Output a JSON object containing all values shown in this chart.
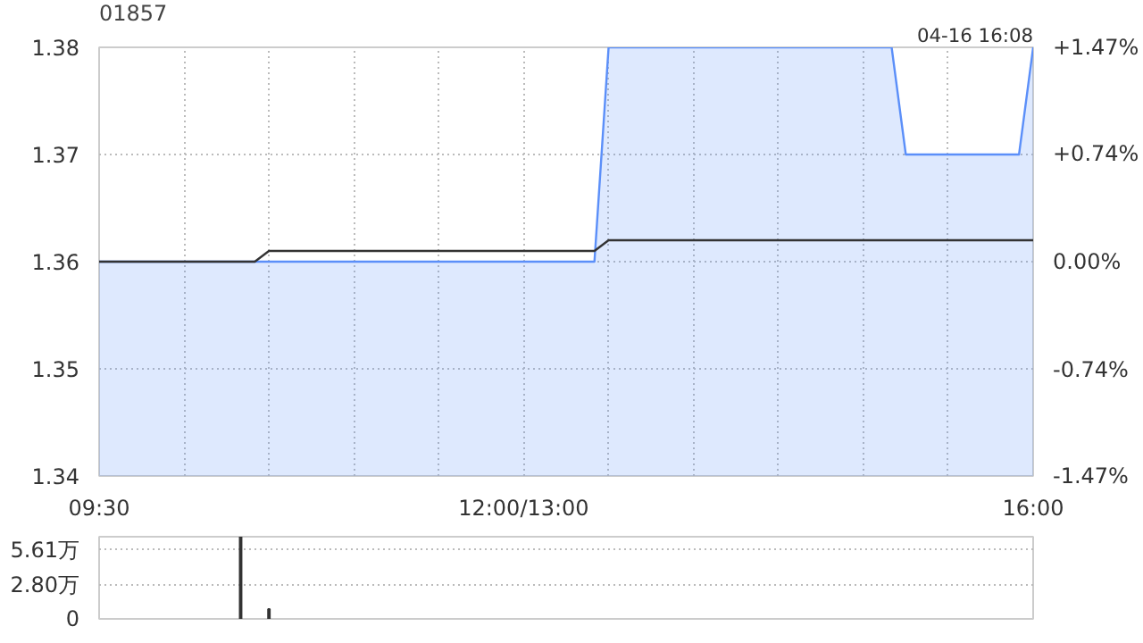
{
  "chart_data": [
    {
      "type": "area",
      "title": "01857",
      "annotations": [
        "04-16 16:08"
      ],
      "categories": [
        "09:30",
        null,
        null,
        null,
        null,
        null,
        null,
        null,
        null,
        null,
        null,
        null,
        null,
        null,
        null,
        null,
        null,
        null,
        null,
        null,
        null,
        null,
        null,
        null,
        null,
        null,
        null,
        null,
        null,
        null,
        "12:00/13:00",
        null,
        null,
        null,
        null,
        null,
        null,
        null,
        null,
        null,
        null,
        null,
        null,
        null,
        null,
        null,
        null,
        null,
        null,
        null,
        null,
        null,
        null,
        null,
        null,
        null,
        null,
        null,
        null,
        null,
        null,
        null,
        null,
        null,
        null,
        null,
        "16:00"
      ],
      "ylim": [
        1.34,
        1.38
      ],
      "yticks": [
        1.34,
        1.35,
        1.36,
        1.37,
        1.38
      ],
      "y2lim": [
        -1.47,
        1.47
      ],
      "y2ticks": [
        {
          "value": -1.47,
          "label": "-1.47%"
        },
        {
          "value": -0.74,
          "label": "-0.74%"
        },
        {
          "value": 0,
          "label": "0.00%"
        },
        {
          "value": 0.74,
          "label": "+0.74%"
        },
        {
          "value": 1.47,
          "label": "+1.47%"
        }
      ],
      "grid": true,
      "series": [
        {
          "color": "#5b8ff9",
          "values": [
            1.36,
            1.36,
            1.36,
            1.36,
            1.36,
            1.36,
            1.36,
            1.36,
            1.36,
            1.36,
            1.36,
            1.36,
            1.36,
            1.36,
            1.36,
            1.36,
            1.36,
            1.36,
            1.36,
            1.36,
            1.36,
            1.36,
            1.36,
            1.36,
            1.36,
            1.36,
            1.36,
            1.36,
            1.36,
            1.36,
            1.36,
            1.36,
            1.36,
            1.36,
            1.36,
            1.36,
            1.38,
            1.38,
            1.38,
            1.38,
            1.38,
            1.38,
            1.38,
            1.38,
            1.38,
            1.38,
            1.38,
            1.38,
            1.38,
            1.38,
            1.38,
            1.38,
            1.38,
            1.38,
            1.38,
            1.38,
            1.38,
            1.37,
            1.37,
            1.37,
            1.37,
            1.37,
            1.37,
            1.37,
            1.37,
            1.37,
            1.38
          ]
        },
        {
          "type": "line",
          "color": "#333333",
          "values": [
            1.36,
            1.36,
            1.36,
            1.36,
            1.36,
            1.36,
            1.36,
            1.36,
            1.36,
            1.36,
            1.36,
            1.36,
            1.361,
            1.361,
            1.361,
            1.361,
            1.361,
            1.361,
            1.361,
            1.361,
            1.361,
            1.361,
            1.361,
            1.361,
            1.361,
            1.361,
            1.361,
            1.361,
            1.361,
            1.361,
            1.361,
            1.361,
            1.361,
            1.361,
            1.361,
            1.361,
            1.362,
            1.362,
            1.362,
            1.362,
            1.362,
            1.362,
            1.362,
            1.362,
            1.362,
            1.362,
            1.362,
            1.362,
            1.362,
            1.362,
            1.362,
            1.362,
            1.362,
            1.362,
            1.362,
            1.362,
            1.362,
            1.362,
            1.362,
            1.362,
            1.362,
            1.362,
            1.362,
            1.362,
            1.362,
            1.362,
            1.362
          ]
        }
      ]
    },
    {
      "type": "bar",
      "categories": [
        null,
        null,
        null,
        null,
        null,
        null,
        null,
        null,
        null,
        null,
        null,
        null,
        null,
        null,
        null,
        null,
        null,
        null,
        null,
        null,
        null,
        null,
        null,
        null,
        null,
        null,
        null,
        null,
        null,
        null,
        null,
        null,
        null,
        null,
        null,
        null,
        null,
        null,
        null,
        null,
        null,
        null,
        null,
        null,
        null,
        null,
        null,
        null,
        null,
        null,
        null,
        null,
        null,
        null,
        null,
        null,
        null,
        null,
        null,
        null,
        null,
        null,
        null,
        null,
        null,
        null,
        null
      ],
      "ylim": [
        0,
        6.7
      ],
      "yticks": [
        0,
        {
          "value": 2.8,
          "label": "2.80万"
        },
        {
          "value": 5.61,
          "label": "5.61万"
        }
      ],
      "grid": "y",
      "tick_labels": "y",
      "series": [
        {
          "color": "#333333",
          "values": [
            null,
            null,
            null,
            null,
            null,
            null,
            null,
            null,
            null,
            null,
            6.7,
            null,
            0.8,
            null,
            null,
            null,
            null,
            null,
            null,
            null,
            null,
            null,
            null,
            null,
            null,
            null,
            null,
            null,
            null,
            null,
            null,
            null,
            null,
            null,
            null,
            null,
            null,
            null,
            null,
            null,
            null,
            null,
            null,
            null,
            null,
            null,
            null,
            null,
            null,
            null,
            null,
            null,
            null,
            null,
            null,
            null,
            null,
            null,
            null,
            null,
            null,
            null,
            null,
            null,
            null,
            null,
            null
          ]
        }
      ]
    }
  ]
}
